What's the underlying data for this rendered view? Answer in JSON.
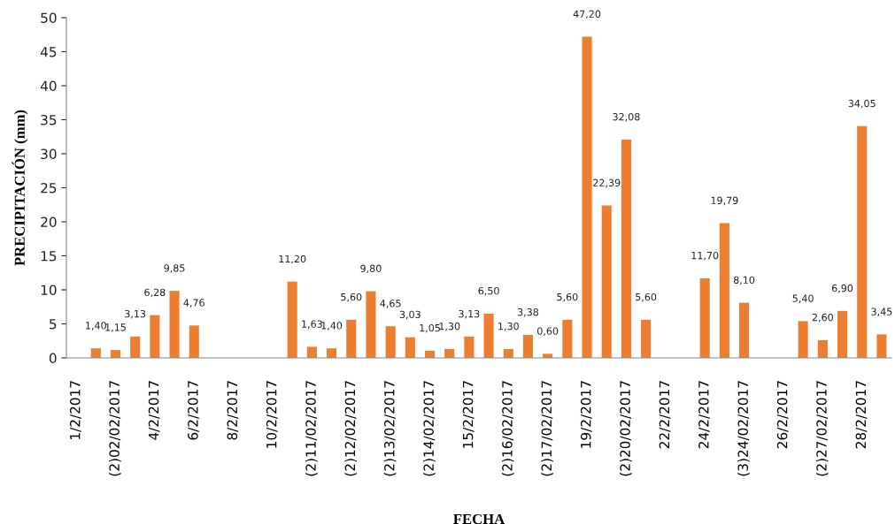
{
  "chart_data": {
    "type": "bar",
    "xlabel": "FECHA",
    "ylabel": "PRECIPITACIÓN (mm)",
    "categories": [
      "1/2/2017",
      null,
      "(2)02/02/2017",
      null,
      "4/2/2017",
      null,
      "6/2/2017",
      null,
      "8/2/2017",
      null,
      "10/2/2017",
      null,
      "(2)11/02/2017",
      null,
      "(2)12/02/2017",
      null,
      "(2)13/02/2017",
      null,
      "(2)14/02/2017",
      null,
      "15/2/2017",
      null,
      "(2)16/02/2017",
      null,
      "(2)17/02/2017",
      null,
      "19/2/2017",
      null,
      "(2)20/02/2017",
      null,
      "22/2/2017",
      null,
      "24/2/2017",
      null,
      "(3)24/02/2017",
      null,
      "26/2/2017",
      null,
      "(2)27/02/2017",
      null,
      "28/2/2017",
      null
    ],
    "values": [
      null,
      1.4,
      1.15,
      3.13,
      6.28,
      9.85,
      4.76,
      null,
      null,
      null,
      null,
      11.2,
      1.63,
      1.4,
      5.6,
      9.8,
      4.65,
      3.03,
      1.05,
      1.3,
      3.13,
      6.5,
      1.3,
      3.38,
      0.6,
      5.6,
      47.2,
      22.39,
      32.08,
      5.6,
      null,
      null,
      11.7,
      19.79,
      8.1,
      null,
      null,
      5.4,
      2.6,
      6.9,
      34.05,
      3.45
    ],
    "value_labels": [
      null,
      "1,40",
      "1,15",
      "3,13",
      "6,28",
      "9,85",
      "4,76",
      null,
      null,
      null,
      null,
      "11,20",
      "1,63",
      "1,40",
      "5,60",
      "9,80",
      "4,65",
      "3,03",
      "1,05",
      "1,30",
      "3,13",
      "6,50",
      "1,30",
      "3,38",
      "0,60",
      "5,60",
      "47,20",
      "22,39",
      "32,08",
      "5,60",
      null,
      null,
      "11,70",
      "19,79",
      "8,10",
      null,
      null,
      "5,40",
      "2,60",
      "6,90",
      "34,05",
      "3,45"
    ],
    "color": "#ed7d31",
    "ylim": [
      0,
      50
    ],
    "yticks": [
      0,
      5,
      10,
      15,
      20,
      25,
      30,
      35,
      40,
      45,
      50
    ],
    "grid": false,
    "legend": false
  }
}
